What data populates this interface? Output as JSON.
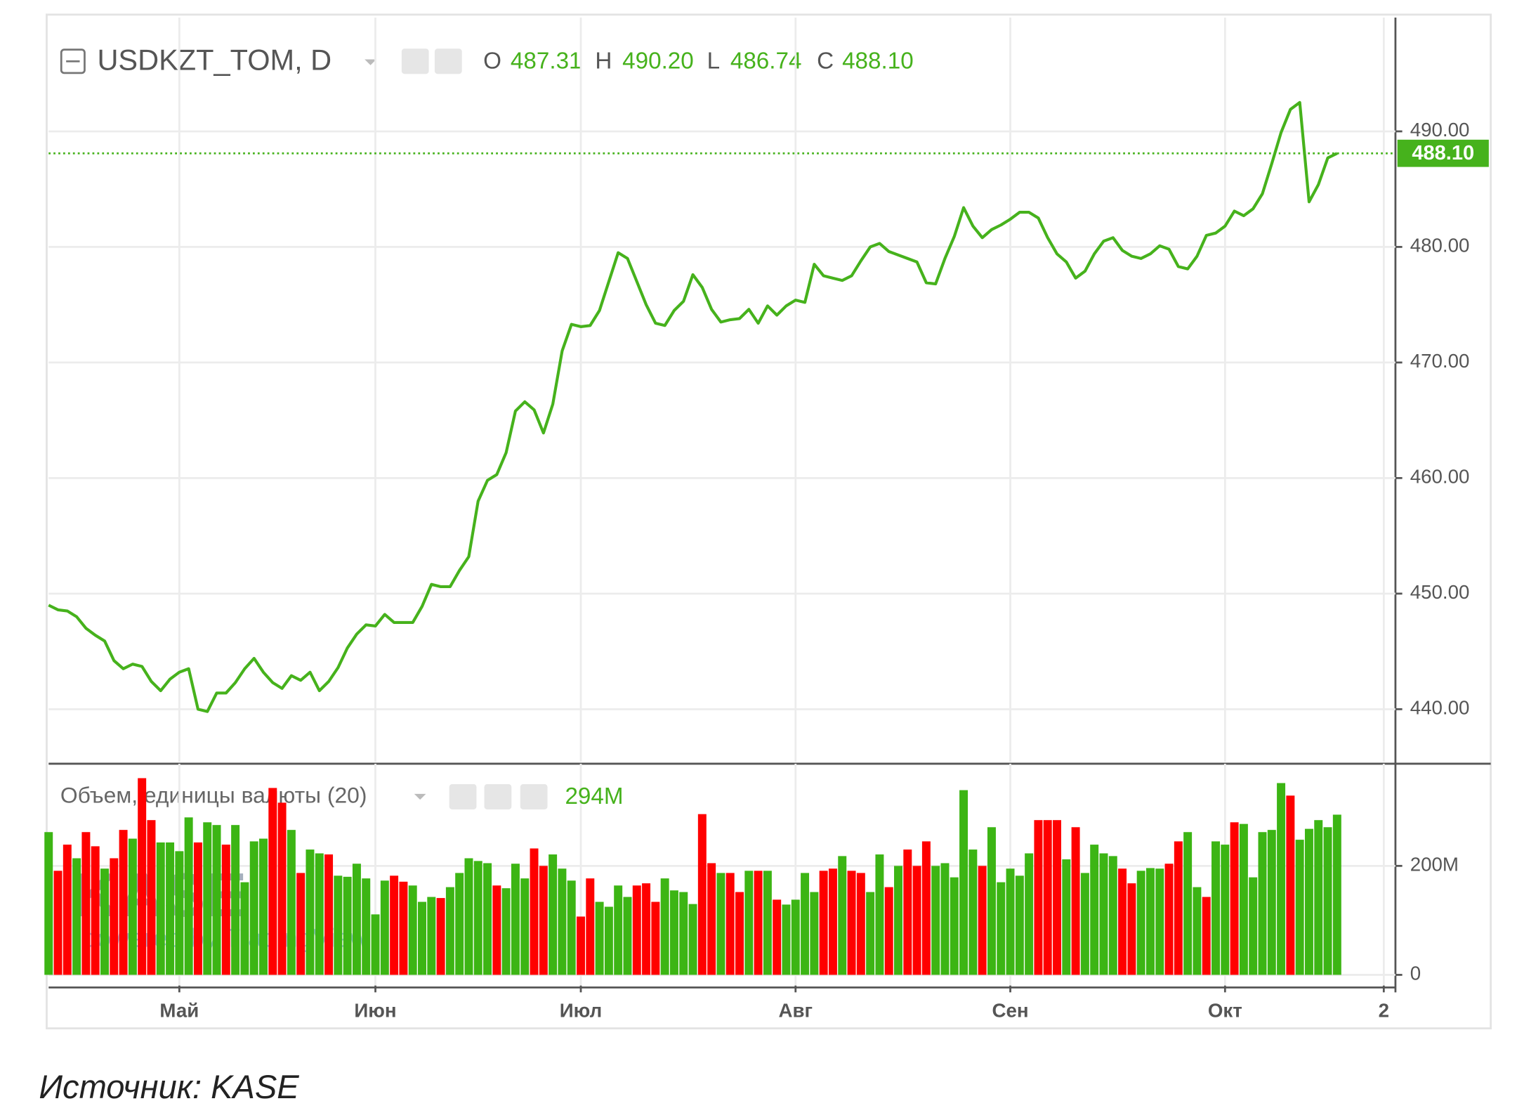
{
  "chart_data": [
    {
      "type": "line",
      "title": "USDKZT_TOM, D",
      "color": "#46b21c",
      "categories": [
        null,
        null,
        null,
        null,
        null,
        null,
        null,
        null,
        null,
        null,
        null,
        null,
        null,
        null,
        "Май",
        null,
        null,
        null,
        null,
        null,
        null,
        null,
        null,
        null,
        null,
        null,
        null,
        null,
        null,
        null,
        null,
        null,
        null,
        null,
        null,
        "Июн",
        null,
        null,
        null,
        null,
        null,
        null,
        null,
        null,
        null,
        null,
        null,
        null,
        null,
        null,
        null,
        null,
        null,
        null,
        null,
        null,
        null,
        "Июл",
        null,
        null,
        null,
        null,
        null,
        null,
        null,
        null,
        null,
        null,
        null,
        null,
        null,
        null,
        null,
        null,
        null,
        null,
        null,
        null,
        null,
        null,
        "Авг",
        null,
        null,
        null,
        null,
        null,
        null,
        null,
        null,
        null,
        null,
        null,
        null,
        null,
        null,
        null,
        null,
        null,
        null,
        null,
        null,
        null,
        null,
        "Сен",
        null,
        null,
        null,
        null,
        null,
        null,
        null,
        null,
        null,
        null,
        null,
        null,
        null,
        null,
        null,
        null,
        null,
        null,
        null,
        null,
        null,
        null,
        "Окт",
        null,
        null,
        null,
        null,
        null,
        null,
        null,
        null,
        null,
        null,
        null,
        null,
        null,
        null,
        null,
        null,
        "2"
      ],
      "values": [
        449.0,
        448.6,
        448.5,
        448.0,
        447.0,
        446.4,
        445.9,
        444.2,
        443.5,
        443.9,
        443.7,
        442.4,
        441.6,
        442.6,
        443.2,
        443.5,
        440.0,
        439.8,
        441.4,
        441.4,
        442.3,
        443.5,
        444.4,
        443.2,
        442.3,
        441.8,
        442.9,
        442.5,
        443.2,
        441.6,
        442.4,
        443.6,
        445.3,
        446.5,
        447.3,
        447.2,
        448.2,
        447.5,
        447.5,
        447.5,
        448.9,
        450.8,
        450.6,
        450.6,
        452.0,
        453.2,
        458.0,
        459.8,
        460.3,
        462.2,
        465.8,
        466.6,
        465.9,
        463.9,
        466.4,
        471.0,
        473.3,
        473.1,
        473.2,
        474.5,
        477.0,
        479.5,
        479.0,
        477.0,
        475.0,
        473.4,
        473.2,
        474.5,
        475.3,
        477.6,
        476.5,
        474.6,
        473.5,
        473.7,
        473.8,
        474.6,
        473.4,
        474.9,
        474.1,
        474.9,
        475.4,
        475.2,
        478.5,
        477.5,
        477.3,
        477.1,
        477.5,
        478.8,
        480.0,
        480.3,
        479.6,
        479.3,
        479.0,
        478.7,
        476.9,
        476.8,
        479.0,
        480.9,
        483.4,
        481.8,
        480.8,
        481.5,
        481.9,
        482.4,
        483.0,
        483.0,
        482.5,
        480.8,
        479.4,
        478.7,
        477.3,
        477.9,
        479.4,
        480.5,
        480.8,
        479.7,
        479.2,
        479.0,
        479.4,
        480.1,
        479.8,
        478.3,
        478.1,
        479.2,
        481.0,
        481.2,
        481.8,
        483.1,
        482.7,
        483.3,
        484.6,
        487.2,
        489.9,
        491.9,
        492.5,
        483.9,
        485.4,
        487.7,
        488.1,
        null,
        null,
        null,
        null,
        null
      ],
      "ylim": [
        435.45,
        499.85
      ],
      "yticks": [
        {
          "value": 440,
          "label": "440.00"
        },
        {
          "value": 450,
          "label": "450.00"
        },
        {
          "value": 460,
          "label": "460.00"
        },
        {
          "value": 470,
          "label": "470.00"
        },
        {
          "value": 480,
          "label": "480.00"
        },
        {
          "value": 490,
          "label": "490.00"
        }
      ],
      "grid": true,
      "ohlc": [
        {
          "name": "O",
          "value": 487.31,
          "label": "487.31"
        },
        {
          "name": "H",
          "value": 490.2,
          "label": "490.20"
        },
        {
          "name": "L",
          "value": 486.74,
          "label": "486.74"
        },
        {
          "name": "C",
          "value": 488.1,
          "label": "488.10"
        }
      ],
      "last_price": {
        "value": 488.1,
        "label": "488.10"
      }
    },
    {
      "type": "bar",
      "title": "Объем, единицы валюты (20)",
      "values": [
        262,
        191,
        239,
        214,
        262,
        236,
        195,
        214,
        266,
        250,
        361,
        284,
        243,
        243,
        227,
        289,
        243,
        280,
        275,
        239,
        275,
        170,
        245,
        250,
        343,
        316,
        266,
        187,
        230,
        223,
        221,
        182,
        180,
        204,
        177,
        111,
        173,
        182,
        171,
        164,
        134,
        143,
        141,
        161,
        187,
        214,
        209,
        205,
        164,
        159,
        204,
        177,
        232,
        200,
        221,
        195,
        173,
        107,
        177,
        134,
        125,
        164,
        143,
        164,
        168,
        134,
        177,
        155,
        152,
        130,
        295,
        205,
        187,
        187,
        152,
        191,
        191,
        191,
        138,
        129,
        138,
        187,
        152,
        191,
        195,
        218,
        191,
        187,
        152,
        221,
        161,
        200,
        230,
        200,
        245,
        200,
        205,
        179,
        339,
        230,
        200,
        271,
        170,
        195,
        182,
        223,
        284,
        284,
        284,
        212,
        271,
        187,
        239,
        223,
        218,
        195,
        168,
        191,
        196,
        195,
        204,
        245,
        262,
        161,
        143,
        245,
        239,
        280,
        277,
        179,
        262,
        266,
        352,
        329,
        248,
        268,
        284,
        271,
        294,
        null,
        null,
        null,
        null,
        null
      ],
      "value_labels": [
        null,
        null,
        null,
        null,
        null,
        null,
        null,
        null,
        null,
        null,
        null,
        null,
        null,
        null,
        null,
        null,
        null,
        null,
        null,
        null,
        null,
        null,
        null,
        null,
        null,
        null,
        null,
        null,
        null,
        null,
        null,
        null,
        null,
        null,
        null,
        null,
        null,
        null,
        null,
        null,
        null,
        null,
        null,
        null,
        null,
        null,
        null,
        null,
        null,
        null,
        null,
        null,
        null,
        null,
        null,
        null,
        null,
        null,
        null,
        null,
        null,
        null,
        null,
        null,
        null,
        null,
        null,
        null,
        null,
        null,
        null,
        null,
        null,
        null,
        null,
        null,
        null,
        null,
        null,
        null,
        null,
        null,
        null,
        null,
        null,
        null,
        null,
        null,
        null,
        null,
        null,
        null,
        null,
        null,
        null,
        null,
        null,
        null,
        null,
        null,
        null,
        null,
        null,
        null,
        null,
        null,
        null,
        null,
        null,
        null,
        null,
        null,
        null,
        null,
        null,
        null,
        null,
        null,
        null,
        null,
        null,
        null,
        null,
        null,
        null,
        null,
        null,
        null,
        null,
        null,
        null,
        null,
        null,
        null,
        null,
        null,
        null,
        null,
        "294M",
        null,
        null,
        null,
        null,
        null
      ],
      "colors": [
        "#3cb514",
        "#ff0000",
        "#ff0000",
        "#3cb514",
        "#ff0000",
        "#ff0000",
        "#3cb514",
        "#ff0000",
        "#ff0000",
        "#3cb514",
        "#ff0000",
        "#ff0000",
        "#3cb514",
        "#3cb514",
        "#3cb514",
        "#3cb514",
        "#ff0000",
        "#3cb514",
        "#3cb514",
        "#ff0000",
        "#3cb514",
        "#3cb514",
        "#3cb514",
        "#3cb514",
        "#ff0000",
        "#ff0000",
        "#3cb514",
        "#ff0000",
        "#3cb514",
        "#3cb514",
        "#ff0000",
        "#3cb514",
        "#3cb514",
        "#3cb514",
        "#3cb514",
        "#3cb514",
        "#3cb514",
        "#ff0000",
        "#ff0000",
        "#3cb514",
        "#3cb514",
        "#3cb514",
        "#ff0000",
        "#3cb514",
        "#3cb514",
        "#3cb514",
        "#3cb514",
        "#3cb514",
        "#ff0000",
        "#3cb514",
        "#3cb514",
        "#3cb514",
        "#ff0000",
        "#ff0000",
        "#3cb514",
        "#3cb514",
        "#3cb514",
        "#ff0000",
        "#ff0000",
        "#3cb514",
        "#3cb514",
        "#3cb514",
        "#3cb514",
        "#ff0000",
        "#ff0000",
        "#ff0000",
        "#3cb514",
        "#3cb514",
        "#3cb514",
        "#3cb514",
        "#ff0000",
        "#ff0000",
        "#3cb514",
        "#ff0000",
        "#ff0000",
        "#3cb514",
        "#ff0000",
        "#3cb514",
        "#ff0000",
        "#3cb514",
        "#3cb514",
        "#3cb514",
        "#3cb514",
        "#ff0000",
        "#ff0000",
        "#3cb514",
        "#ff0000",
        "#ff0000",
        "#3cb514",
        "#3cb514",
        "#ff0000",
        "#3cb514",
        "#ff0000",
        "#ff0000",
        "#ff0000",
        "#3cb514",
        "#3cb514",
        "#3cb514",
        "#3cb514",
        "#3cb514",
        "#ff0000",
        "#3cb514",
        "#3cb514",
        "#3cb514",
        "#3cb514",
        "#3cb514",
        "#ff0000",
        "#ff0000",
        "#ff0000",
        "#3cb514",
        "#ff0000",
        "#3cb514",
        "#3cb514",
        "#3cb514",
        "#3cb514",
        "#ff0000",
        "#ff0000",
        "#3cb514",
        "#3cb514",
        "#3cb514",
        "#ff0000",
        "#ff0000",
        "#3cb514",
        "#3cb514",
        "#ff0000",
        "#3cb514",
        "#3cb514",
        "#ff0000",
        "#3cb514",
        "#3cb514",
        "#3cb514",
        "#3cb514",
        "#3cb514",
        "#ff0000",
        "#3cb514",
        "#3cb514",
        "#3cb514",
        "#3cb514",
        "#3cb514",
        null,
        null,
        null,
        null,
        null
      ],
      "value_color": "#46b21c",
      "ylim": [
        -19.6,
        387.5
      ],
      "yticks": [
        0,
        {
          "value": 200,
          "label": "200M"
        }
      ],
      "grid": true
    }
  ],
  "watermark": {
    "logo": "KASE",
    "credit": "powered by TradingView"
  },
  "caption": "Источник: KASE"
}
